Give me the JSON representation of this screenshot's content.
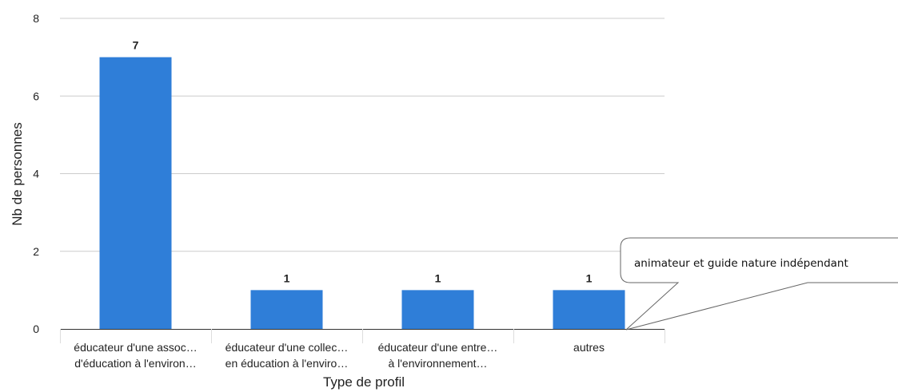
{
  "chart_data": {
    "type": "bar",
    "categories": [
      [
        "éducateur d'une assoc…",
        "d'éducation à l'environ…"
      ],
      [
        "éducateur d'une collec…",
        "en éducation à l'enviro…"
      ],
      [
        "éducateur d'une entre…",
        "à l'environnement…"
      ],
      [
        "autres"
      ]
    ],
    "values": [
      7,
      1,
      1,
      1
    ],
    "data_labels": [
      "7",
      "1",
      "1",
      "1"
    ],
    "xlabel": "Type de profil",
    "ylabel": "Nb de personnes",
    "ylim": [
      0,
      8
    ],
    "yticks": [
      "0",
      "2",
      "4",
      "6",
      "8"
    ],
    "grid": true,
    "bar_color": "#2f7ed8",
    "annotation": "animateur et guide nature indépendant"
  }
}
